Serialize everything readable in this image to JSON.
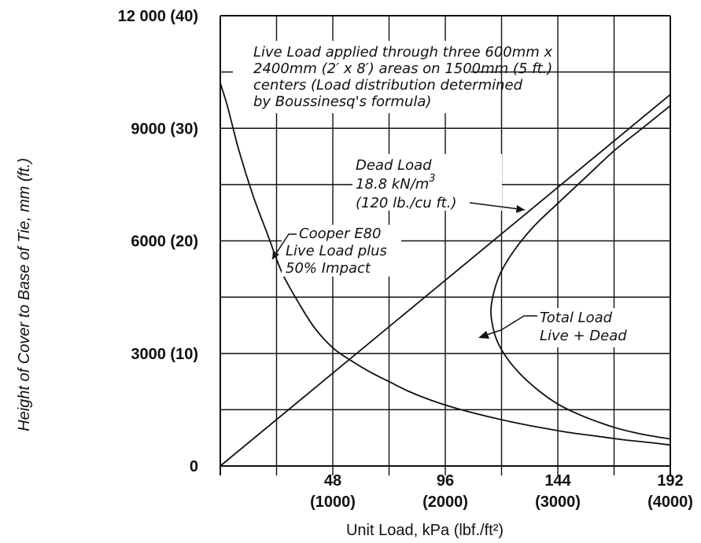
{
  "chart_data": {
    "type": "line",
    "xlabel": "Unit Load,  kPa (lbf./ft²)",
    "ylabel": "Height of Cover to Base of Tie, mm (ft.)",
    "xlim": [
      0,
      192
    ],
    "ylim": [
      0,
      12000
    ],
    "x_ticks": [
      {
        "value": 48,
        "label": "48",
        "sub": "(1000)"
      },
      {
        "value": 96,
        "label": "96",
        "sub": "(2000)"
      },
      {
        "value": 144,
        "label": "144",
        "sub": "(3000)"
      },
      {
        "value": 192,
        "label": "192",
        "sub": "(4000)"
      }
    ],
    "y_ticks": [
      {
        "value": 0,
        "label": "0"
      },
      {
        "value": 3000,
        "label": "3000  (10)"
      },
      {
        "value": 6000,
        "label": "6000  (20)"
      },
      {
        "value": 9000,
        "label": "9000  (30)"
      },
      {
        "value": 12000,
        "label": "12 000  (40)"
      }
    ],
    "grid": true,
    "series": [
      {
        "name": "Cooper E80 Live Load plus 50% Impact",
        "x": [
          0,
          3,
          8,
          14,
          20,
          26,
          32,
          40,
          48,
          56,
          64,
          72,
          80,
          90,
          100,
          112,
          124,
          136,
          148,
          160,
          172,
          184,
          192
        ],
        "y": [
          10200,
          9600,
          8400,
          7200,
          6200,
          5200,
          4500,
          3700,
          3150,
          2800,
          2500,
          2250,
          2000,
          1750,
          1550,
          1350,
          1180,
          1030,
          900,
          800,
          700,
          620,
          560
        ]
      },
      {
        "name": "Dead Load 18.8 kN/m³ (120 lb./cu ft.)",
        "x": [
          0,
          192
        ],
        "y": [
          0,
          9900
        ]
      },
      {
        "name": "Total Load Live + Dead",
        "x": [
          192,
          184,
          176,
          168,
          160,
          152,
          144,
          136,
          128,
          122,
          118,
          116,
          115.5,
          117,
          120,
          126,
          134,
          144,
          156,
          168,
          180,
          192
        ],
        "y": [
          720,
          800,
          900,
          1030,
          1200,
          1400,
          1650,
          2000,
          2450,
          2900,
          3350,
          3800,
          4200,
          4700,
          5200,
          5800,
          6400,
          7000,
          7700,
          8400,
          9000,
          9600
        ]
      }
    ],
    "annotations": {
      "live_load_note": [
        "Live Load applied through three 600mm x",
        "2400mm (2′ x 8′) areas on 1500mm (5 ft.)",
        "centers (Load distribution determined",
        "by Boussinesq's formula)"
      ],
      "dead_load": [
        "Dead Load",
        "18.8 kN/m",
        "3",
        "(120 lb./cu ft.)"
      ],
      "cooper": [
        "Cooper E80",
        "Live Load plus",
        "50% Impact"
      ],
      "total_load": [
        "Total Load",
        "Live + Dead"
      ]
    }
  }
}
